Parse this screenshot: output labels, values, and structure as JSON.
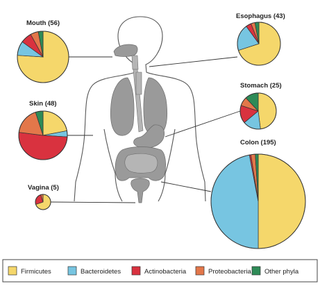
{
  "colors": {
    "Firmicutes": "#f5d76b",
    "Bacteroidetes": "#77c5e1",
    "Actinobacteria": "#d9323f",
    "Proteobacteria": "#e3774a",
    "Other phyla": "#2e8b57"
  },
  "legend": {
    "items": [
      "Firmicutes",
      "Bacteroidetes",
      "Actinobacteria",
      "Proteobacteria",
      "Other phyla"
    ]
  },
  "chart_data": [
    {
      "type": "pie",
      "title": "Mouth (56)",
      "categories": [
        "Firmicutes",
        "Bacteroidetes",
        "Actinobacteria",
        "Proteobacteria",
        "Other phyla"
      ],
      "values": [
        76,
        9,
        7,
        5,
        3
      ]
    },
    {
      "type": "pie",
      "title": "Esophagus (43)",
      "categories": [
        "Firmicutes",
        "Bacteroidetes",
        "Actinobacteria",
        "Proteobacteria",
        "Other phyla"
      ],
      "values": [
        70,
        20,
        4,
        3,
        3
      ]
    },
    {
      "type": "pie",
      "title": "Skin (48)",
      "categories": [
        "Firmicutes",
        "Bacteroidetes",
        "Actinobacteria",
        "Proteobacteria",
        "Other phyla"
      ],
      "values": [
        22,
        4,
        51,
        18,
        5
      ]
    },
    {
      "type": "pie",
      "title": "Stomach (25)",
      "categories": [
        "Firmicutes",
        "Bacteroidetes",
        "Actinobacteria",
        "Proteobacteria",
        "Other phyla"
      ],
      "values": [
        48,
        16,
        16,
        8,
        12
      ]
    },
    {
      "type": "pie",
      "title": "Colon (195)",
      "categories": [
        "Firmicutes",
        "Bacteroidetes",
        "Actinobacteria",
        "Proteobacteria",
        "Other phyla"
      ],
      "values": [
        50,
        47,
        0.5,
        1.5,
        1
      ]
    },
    {
      "type": "pie",
      "title": "Vagina (5)",
      "categories": [
        "Firmicutes",
        "Bacteroidetes",
        "Actinobacteria",
        "Proteobacteria",
        "Other phyla"
      ],
      "values": [
        70,
        0,
        25,
        5,
        0
      ]
    }
  ]
}
